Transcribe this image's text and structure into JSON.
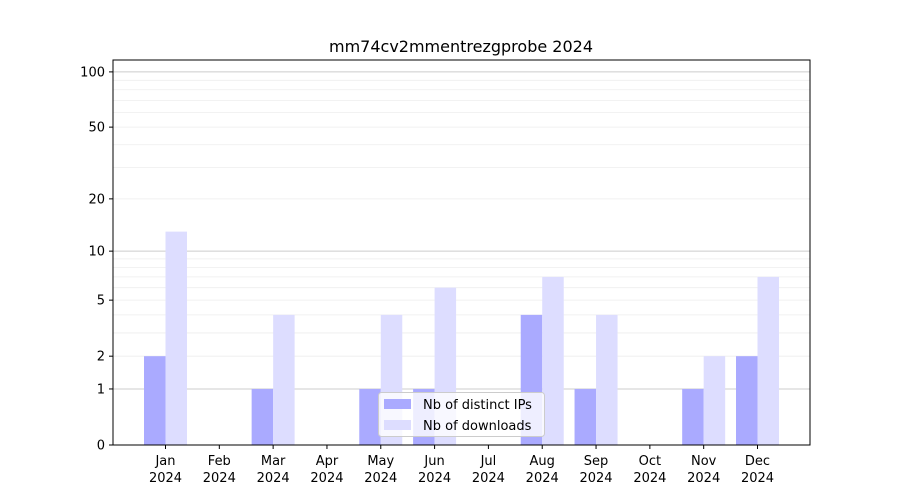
{
  "chart_data": {
    "type": "bar",
    "title": "mm74cv2mmentrezgprobe 2024",
    "xlabel": "",
    "ylabel": "",
    "y_scale": "log(1+y)",
    "ylim": [
      0,
      116
    ],
    "y_ticks": [
      0,
      1,
      2,
      5,
      10,
      20,
      50,
      100
    ],
    "grid": true,
    "legend_position": "bottom-center",
    "categories": [
      "Jan\n2024",
      "Feb\n2024",
      "Mar\n2024",
      "Apr\n2024",
      "May\n2024",
      "Jun\n2024",
      "Jul\n2024",
      "Aug\n2024",
      "Sep\n2024",
      "Oct\n2024",
      "Nov\n2024",
      "Dec\n2024"
    ],
    "series": [
      {
        "name": "Nb of distinct IPs",
        "color": "#aaaaff",
        "values": [
          2,
          0,
          1,
          0,
          1,
          1,
          0,
          4,
          1,
          0,
          1,
          2
        ]
      },
      {
        "name": "Nb of downloads",
        "color": "#ddddff",
        "values": [
          13,
          0,
          4,
          0,
          4,
          6,
          0,
          7,
          4,
          0,
          2,
          7
        ]
      }
    ]
  }
}
